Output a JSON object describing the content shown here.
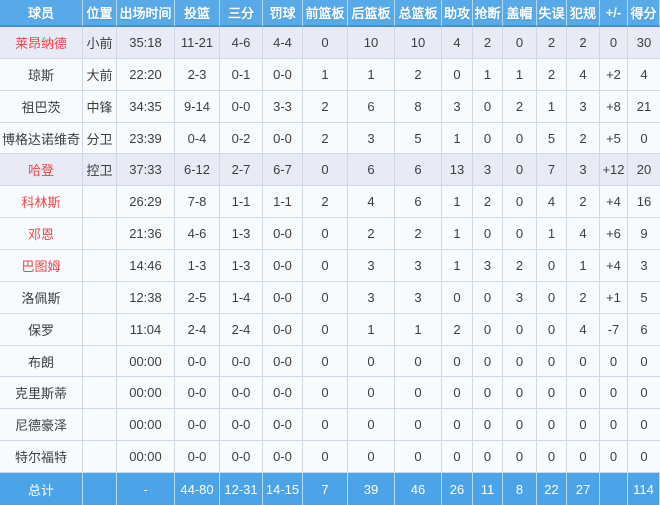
{
  "colors": {
    "header_bg": "#57aae7",
    "header_underline": "#4191d2",
    "header_text": "#ffffff",
    "total_bg": "#4ca4e8",
    "row_bg": "#f8fbfe",
    "row_highlight_bg": "#e8ebf6",
    "grid_line": "#cdd9e6",
    "text": "#3d3d3d",
    "player_red": "#f04546"
  },
  "table": {
    "columns": [
      {
        "key": "player",
        "label": "球员"
      },
      {
        "key": "pos",
        "label": "位置"
      },
      {
        "key": "time",
        "label": "出场时间"
      },
      {
        "key": "fg",
        "label": "投篮"
      },
      {
        "key": "three",
        "label": "三分"
      },
      {
        "key": "ft",
        "label": "罚球"
      },
      {
        "key": "oreb",
        "label": "前篮板"
      },
      {
        "key": "dreb",
        "label": "后篮板"
      },
      {
        "key": "treb",
        "label": "总篮板"
      },
      {
        "key": "ast",
        "label": "助攻"
      },
      {
        "key": "stl",
        "label": "抢断"
      },
      {
        "key": "blk",
        "label": "盖帽"
      },
      {
        "key": "to",
        "label": "失误"
      },
      {
        "key": "pf",
        "label": "犯规"
      },
      {
        "key": "pm",
        "label": "+/-"
      },
      {
        "key": "pts",
        "label": "得分"
      }
    ],
    "rows": [
      {
        "name": "莱昂纳德",
        "red": true,
        "highlight": true,
        "cells": [
          "小前",
          "35:18",
          "11-21",
          "4-6",
          "4-4",
          "0",
          "10",
          "10",
          "4",
          "2",
          "0",
          "2",
          "2",
          "0",
          "30"
        ]
      },
      {
        "name": "琼斯",
        "red": false,
        "highlight": false,
        "cells": [
          "大前",
          "22:20",
          "2-3",
          "0-1",
          "0-0",
          "1",
          "1",
          "2",
          "0",
          "1",
          "1",
          "2",
          "4",
          "+2",
          "4"
        ]
      },
      {
        "name": "祖巴茨",
        "red": false,
        "highlight": false,
        "cells": [
          "中锋",
          "34:35",
          "9-14",
          "0-0",
          "3-3",
          "2",
          "6",
          "8",
          "3",
          "0",
          "2",
          "1",
          "3",
          "+8",
          "21"
        ]
      },
      {
        "name": "博格达诺维奇",
        "red": false,
        "highlight": false,
        "cells": [
          "分卫",
          "23:39",
          "0-4",
          "0-2",
          "0-0",
          "2",
          "3",
          "5",
          "1",
          "0",
          "0",
          "5",
          "2",
          "+5",
          "0"
        ]
      },
      {
        "name": "哈登",
        "red": true,
        "highlight": true,
        "cells": [
          "控卫",
          "37:33",
          "6-12",
          "2-7",
          "6-7",
          "0",
          "6",
          "6",
          "13",
          "3",
          "0",
          "7",
          "3",
          "+12",
          "20"
        ]
      },
      {
        "name": "科林斯",
        "red": true,
        "highlight": false,
        "cells": [
          "",
          "26:29",
          "7-8",
          "1-1",
          "1-1",
          "2",
          "4",
          "6",
          "1",
          "2",
          "0",
          "4",
          "2",
          "+4",
          "16"
        ]
      },
      {
        "name": "邓恩",
        "red": true,
        "highlight": false,
        "cells": [
          "",
          "21:36",
          "4-6",
          "1-3",
          "0-0",
          "0",
          "2",
          "2",
          "1",
          "0",
          "0",
          "1",
          "4",
          "+6",
          "9"
        ]
      },
      {
        "name": "巴图姆",
        "red": true,
        "highlight": false,
        "cells": [
          "",
          "14:46",
          "1-3",
          "1-3",
          "0-0",
          "0",
          "3",
          "3",
          "1",
          "3",
          "2",
          "0",
          "1",
          "+4",
          "3"
        ]
      },
      {
        "name": "洛佩斯",
        "red": false,
        "highlight": false,
        "cells": [
          "",
          "12:38",
          "2-5",
          "1-4",
          "0-0",
          "0",
          "3",
          "3",
          "0",
          "0",
          "3",
          "0",
          "2",
          "+1",
          "5"
        ]
      },
      {
        "name": "保罗",
        "red": false,
        "highlight": false,
        "cells": [
          "",
          "11:04",
          "2-4",
          "2-4",
          "0-0",
          "0",
          "1",
          "1",
          "2",
          "0",
          "0",
          "0",
          "4",
          "-7",
          "6"
        ]
      },
      {
        "name": "布朗",
        "red": false,
        "highlight": false,
        "cells": [
          "",
          "00:00",
          "0-0",
          "0-0",
          "0-0",
          "0",
          "0",
          "0",
          "0",
          "0",
          "0",
          "0",
          "0",
          "0",
          "0"
        ]
      },
      {
        "name": "克里斯蒂",
        "red": false,
        "highlight": false,
        "cells": [
          "",
          "00:00",
          "0-0",
          "0-0",
          "0-0",
          "0",
          "0",
          "0",
          "0",
          "0",
          "0",
          "0",
          "0",
          "0",
          "0"
        ]
      },
      {
        "name": "尼德豪泽",
        "red": false,
        "highlight": false,
        "cells": [
          "",
          "00:00",
          "0-0",
          "0-0",
          "0-0",
          "0",
          "0",
          "0",
          "0",
          "0",
          "0",
          "0",
          "0",
          "0",
          "0"
        ]
      },
      {
        "name": "特尔福特",
        "red": false,
        "highlight": false,
        "cells": [
          "",
          "00:00",
          "0-0",
          "0-0",
          "0-0",
          "0",
          "0",
          "0",
          "0",
          "0",
          "0",
          "0",
          "0",
          "0",
          "0"
        ]
      }
    ],
    "total": {
      "label": "总计",
      "cells": [
        "",
        "-",
        "44-80",
        "12-31",
        "14-15",
        "7",
        "39",
        "46",
        "26",
        "11",
        "8",
        "22",
        "27",
        "",
        "114"
      ]
    }
  }
}
